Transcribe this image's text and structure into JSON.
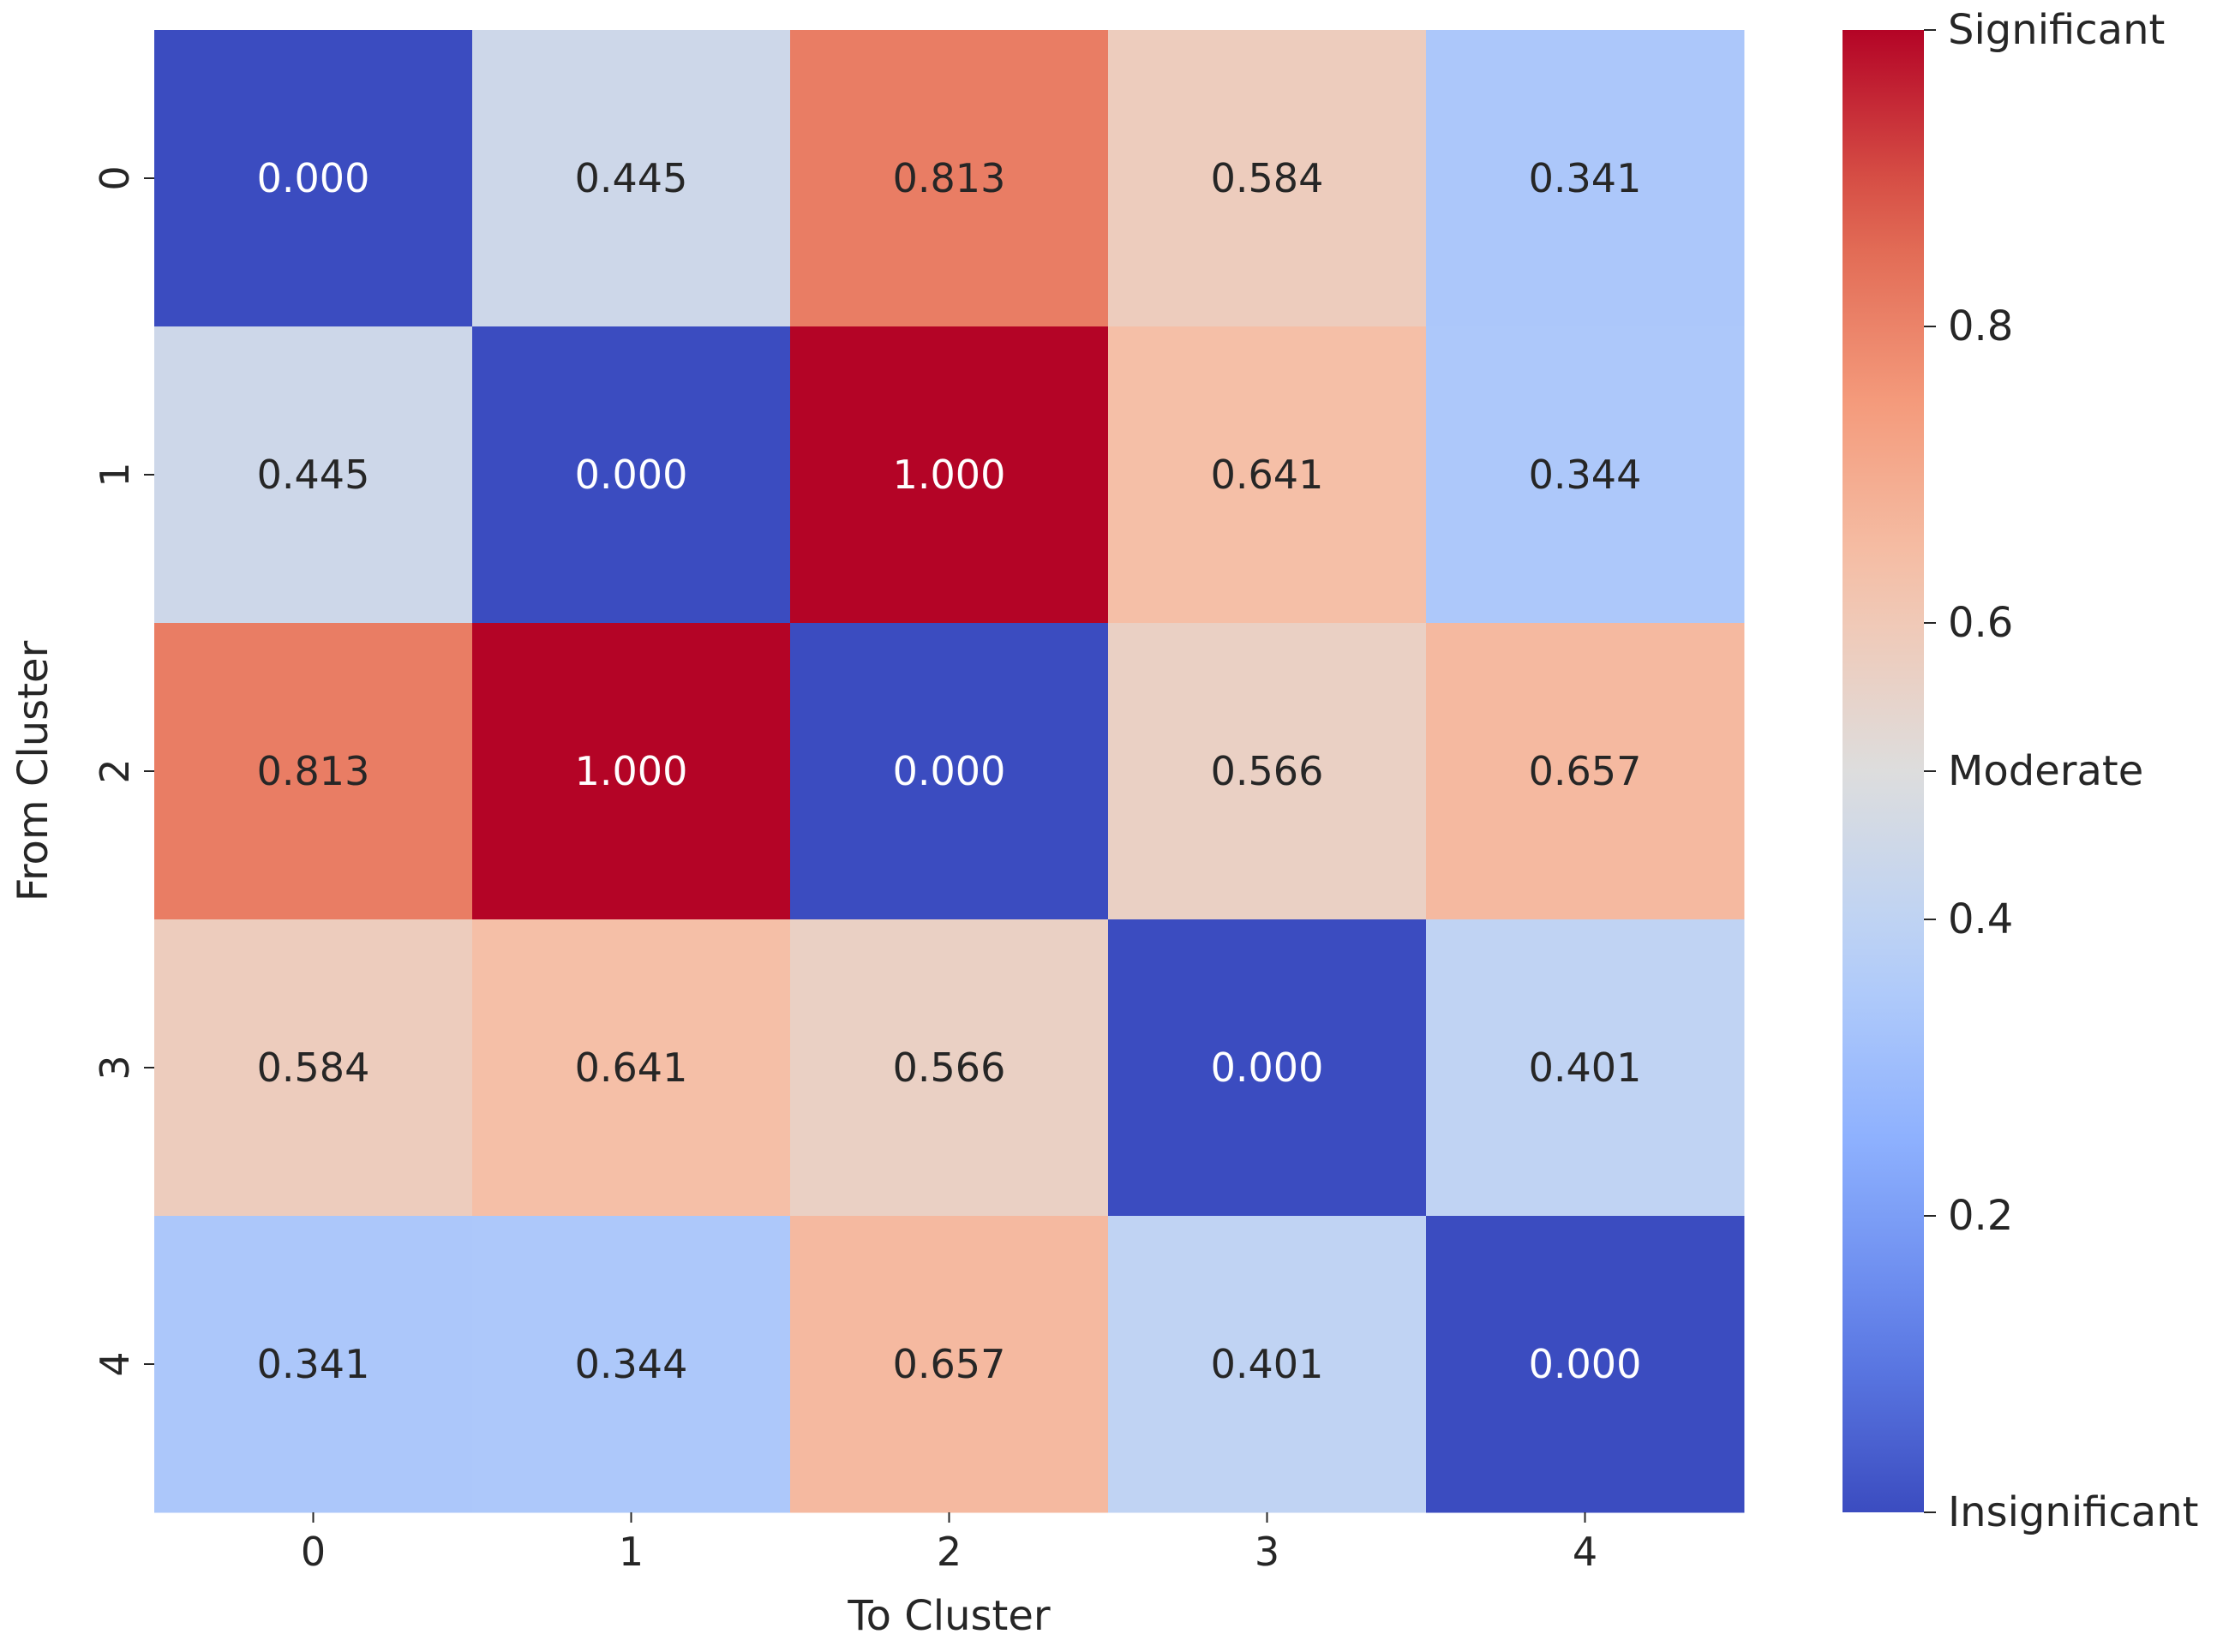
{
  "chart_data": {
    "type": "heatmap",
    "title": "",
    "xlabel": "To Cluster",
    "ylabel": "From Cluster",
    "x_categories": [
      "0",
      "1",
      "2",
      "3",
      "4"
    ],
    "y_categories": [
      "0",
      "1",
      "2",
      "3",
      "4"
    ],
    "values": [
      [
        0.0,
        0.445,
        0.813,
        0.584,
        0.341
      ],
      [
        0.445,
        0.0,
        1.0,
        0.641,
        0.344
      ],
      [
        0.813,
        1.0,
        0.0,
        0.566,
        0.657
      ],
      [
        0.584,
        0.641,
        0.566,
        0.0,
        0.401
      ],
      [
        0.341,
        0.344,
        0.657,
        0.401,
        0.0
      ]
    ],
    "annotation_format": "0.000",
    "colormap": "coolwarm",
    "vmin": 0.0,
    "vmax": 1.0,
    "colorbar": {
      "ticks": [
        {
          "value": 1.0,
          "label": "Significant"
        },
        {
          "value": 0.8,
          "label": "0.8"
        },
        {
          "value": 0.6,
          "label": "0.6"
        },
        {
          "value": 0.5,
          "label": "Moderate"
        },
        {
          "value": 0.4,
          "label": "0.4"
        },
        {
          "value": 0.2,
          "label": "0.2"
        },
        {
          "value": 0.0,
          "label": "Insignificant"
        }
      ]
    }
  }
}
